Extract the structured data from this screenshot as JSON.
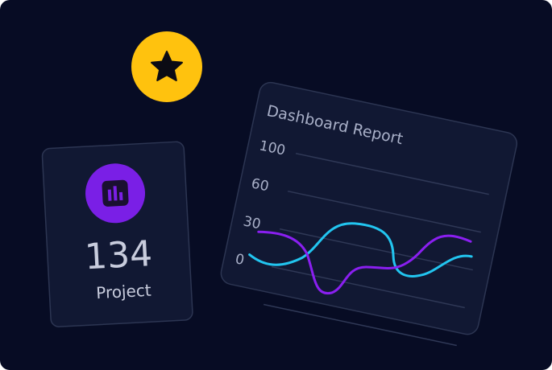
{
  "stat_card": {
    "value": "134",
    "label": "Project"
  },
  "report_card": {
    "title": "Dashboard Report",
    "axis_labels": [
      "100",
      "60",
      "30",
      "0"
    ]
  }
}
